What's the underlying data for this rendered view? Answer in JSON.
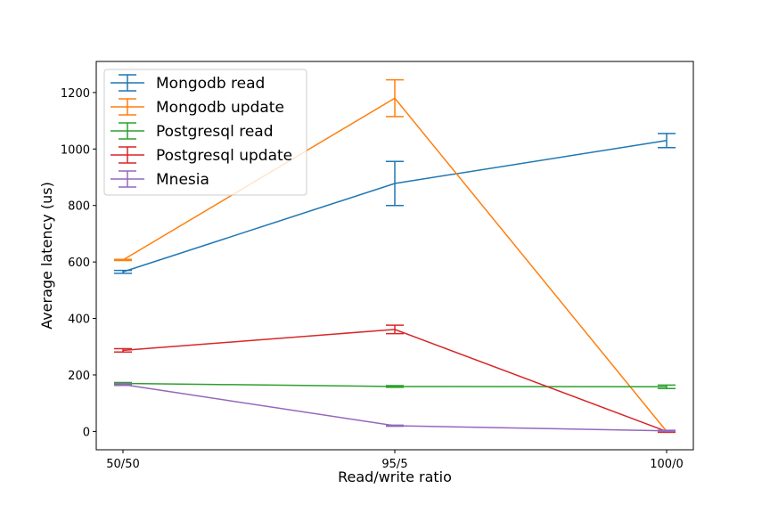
{
  "chart_data": {
    "type": "line",
    "title": "",
    "xlabel": "Read/write ratio",
    "ylabel": "Average latency (us)",
    "categories": [
      "50/50",
      "95/5",
      "100/0"
    ],
    "ylim": [
      -65,
      1310
    ],
    "yticks": [
      0,
      200,
      400,
      600,
      800,
      1000,
      1200
    ],
    "grid": false,
    "legend_position": "top-left",
    "series": [
      {
        "name": "Mongodb read",
        "color": "#1f77b4",
        "values": [
          565,
          878,
          1030
        ],
        "errors": [
          5,
          78,
          25
        ]
      },
      {
        "name": "Mongodb update",
        "color": "#ff7f0e",
        "values": [
          607,
          1180,
          0
        ],
        "errors": [
          2,
          65,
          3
        ]
      },
      {
        "name": "Postgresql read",
        "color": "#2ca02c",
        "values": [
          170,
          159,
          158
        ],
        "errors": [
          3,
          3,
          6
        ]
      },
      {
        "name": "Postgresql update",
        "color": "#d62728",
        "values": [
          287,
          361,
          0
        ],
        "errors": [
          6,
          15,
          3
        ]
      },
      {
        "name": "Mnesia",
        "color": "#9467bd",
        "values": [
          166,
          20,
          2
        ],
        "errors": [
          3,
          2,
          2
        ]
      }
    ]
  }
}
